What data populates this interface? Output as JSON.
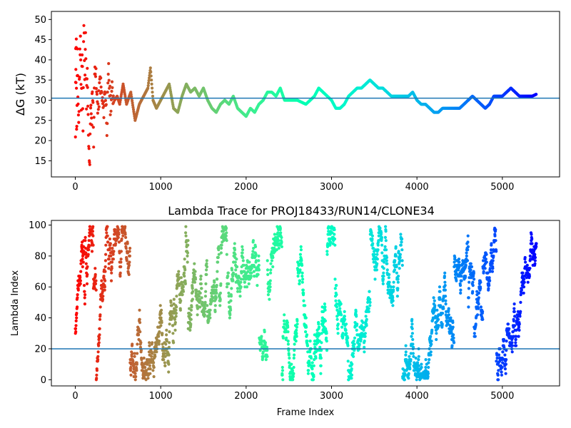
{
  "chart_data": [
    {
      "type": "scatter",
      "title": "",
      "xlabel": "",
      "ylabel": "ΔG (kT)",
      "xlim": [
        -280,
        5670
      ],
      "ylim": [
        11,
        52
      ],
      "xticks": [
        0,
        1000,
        2000,
        3000,
        4000,
        5000
      ],
      "yticks": [
        15,
        20,
        25,
        30,
        35,
        40,
        45,
        50
      ],
      "grid": false,
      "colormap": "rainbow (red at early frames to violet at late frames)",
      "reference_line": {
        "y": 30.5,
        "color": "#1f77b4"
      },
      "points": [
        [
          2,
          20
        ],
        [
          5,
          44
        ],
        [
          8,
          36
        ],
        [
          12,
          47
        ],
        [
          15,
          21
        ],
        [
          20,
          28
        ],
        [
          25,
          40
        ],
        [
          30,
          32
        ],
        [
          40,
          24
        ],
        [
          50,
          38
        ],
        [
          60,
          47
        ],
        [
          70,
          27
        ],
        [
          80,
          42
        ],
        [
          90,
          25
        ],
        [
          100,
          51
        ],
        [
          110,
          33
        ],
        [
          120,
          45
        ],
        [
          130,
          29
        ],
        [
          140,
          36
        ],
        [
          150,
          25
        ],
        [
          160,
          18
        ],
        [
          170,
          14
        ],
        [
          180,
          30
        ],
        [
          190,
          23
        ],
        [
          200,
          34
        ],
        [
          215,
          21
        ],
        [
          230,
          41
        ],
        [
          250,
          31
        ],
        [
          270,
          28
        ],
        [
          290,
          35
        ],
        [
          310,
          31
        ],
        [
          330,
          27
        ],
        [
          350,
          33
        ],
        [
          370,
          24
        ],
        [
          390,
          37
        ],
        [
          410,
          29
        ],
        [
          430,
          32
        ],
        [
          460,
          30
        ],
        [
          490,
          31
        ],
        [
          520,
          29
        ],
        [
          560,
          34
        ],
        [
          600,
          29
        ],
        [
          650,
          32
        ],
        [
          700,
          25
        ],
        [
          750,
          29
        ],
        [
          800,
          31
        ],
        [
          850,
          33
        ],
        [
          880,
          38
        ],
        [
          910,
          30
        ],
        [
          950,
          28
        ],
        [
          1000,
          30
        ],
        [
          1050,
          32
        ],
        [
          1100,
          34
        ],
        [
          1150,
          28
        ],
        [
          1200,
          27
        ],
        [
          1250,
          31
        ],
        [
          1300,
          34
        ],
        [
          1350,
          32
        ],
        [
          1400,
          33
        ],
        [
          1450,
          31
        ],
        [
          1500,
          33
        ],
        [
          1550,
          30
        ],
        [
          1600,
          28
        ],
        [
          1650,
          27
        ],
        [
          1700,
          29
        ],
        [
          1750,
          30
        ],
        [
          1800,
          29
        ],
        [
          1850,
          31
        ],
        [
          1900,
          28
        ],
        [
          1950,
          27
        ],
        [
          2000,
          26
        ],
        [
          2050,
          28
        ],
        [
          2100,
          27
        ],
        [
          2150,
          29
        ],
        [
          2200,
          30
        ],
        [
          2250,
          32
        ],
        [
          2300,
          32
        ],
        [
          2350,
          31
        ],
        [
          2400,
          33
        ],
        [
          2450,
          30
        ],
        [
          2500,
          30
        ],
        [
          2600,
          30
        ],
        [
          2700,
          29
        ],
        [
          2800,
          31
        ],
        [
          2850,
          33
        ],
        [
          2900,
          32
        ],
        [
          2950,
          31
        ],
        [
          3000,
          30
        ],
        [
          3050,
          28
        ],
        [
          3100,
          28
        ],
        [
          3150,
          29
        ],
        [
          3200,
          31
        ],
        [
          3250,
          32
        ],
        [
          3300,
          33
        ],
        [
          3350,
          33
        ],
        [
          3400,
          34
        ],
        [
          3450,
          35
        ],
        [
          3500,
          34
        ],
        [
          3550,
          33
        ],
        [
          3600,
          33
        ],
        [
          3650,
          32
        ],
        [
          3700,
          31
        ],
        [
          3800,
          31
        ],
        [
          3900,
          31
        ],
        [
          3950,
          32
        ],
        [
          4000,
          30
        ],
        [
          4050,
          29
        ],
        [
          4100,
          29
        ],
        [
          4150,
          28
        ],
        [
          4200,
          27
        ],
        [
          4250,
          27
        ],
        [
          4300,
          28
        ],
        [
          4400,
          28
        ],
        [
          4500,
          28
        ],
        [
          4600,
          30
        ],
        [
          4650,
          31
        ],
        [
          4700,
          30
        ],
        [
          4750,
          29
        ],
        [
          4800,
          28
        ],
        [
          4850,
          29
        ],
        [
          4900,
          31
        ],
        [
          4950,
          31
        ],
        [
          5000,
          31
        ],
        [
          5050,
          32
        ],
        [
          5100,
          33
        ],
        [
          5150,
          32
        ],
        [
          5200,
          31
        ],
        [
          5250,
          31
        ],
        [
          5300,
          31
        ],
        [
          5350,
          31
        ],
        [
          5400,
          31.5
        ]
      ]
    },
    {
      "type": "scatter",
      "title": "Lambda Trace for PROJ18433/RUN14/CLONE34",
      "xlabel": "Frame Index",
      "ylabel": "Lambda Index",
      "xlim": [
        -280,
        5670
      ],
      "ylim": [
        -4,
        103
      ],
      "xticks": [
        0,
        1000,
        2000,
        3000,
        4000,
        5000
      ],
      "yticks": [
        0,
        20,
        40,
        60,
        80,
        100
      ],
      "grid": false,
      "colormap": "rainbow (red at early frames to violet at late frames)",
      "reference_line": {
        "y": 20,
        "color": "#1f77b4"
      },
      "n_frames": 5400,
      "lambda_range": [
        0,
        99
      ]
    }
  ]
}
